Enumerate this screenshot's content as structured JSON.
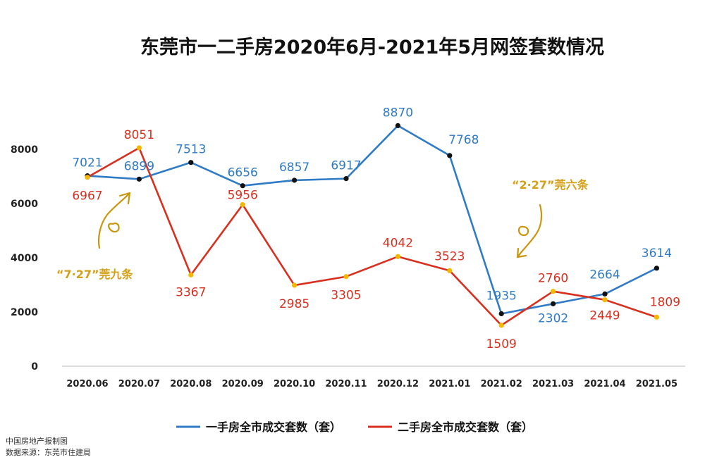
{
  "chart_data": {
    "type": "line",
    "title": "东莞市一二手房2020年6月-2021年5月网签套数情况",
    "categories": [
      "2020.06",
      "2020.07",
      "2020.08",
      "2020.09",
      "2020.10",
      "2020.11",
      "2020.12",
      "2021.01",
      "2021.02",
      "2021.03",
      "2021.04",
      "2021.05"
    ],
    "series": [
      {
        "name": "一手房全市成交套数（套）",
        "color": "#2F7BC5",
        "marker_color": "#111111",
        "values": [
          7021,
          6899,
          7513,
          6656,
          6857,
          6917,
          8870,
          7768,
          1935,
          2302,
          2664,
          3614
        ]
      },
      {
        "name": "二手房全市成交套数（套）",
        "color": "#D8301F",
        "marker_color": "#F5B800",
        "values": [
          6967,
          8051,
          3367,
          5956,
          2985,
          3305,
          4042,
          3523,
          1509,
          2760,
          2449,
          1809
        ]
      }
    ],
    "yticks": [
      0,
      2000,
      4000,
      6000,
      8000
    ],
    "ylim": [
      0,
      9400
    ],
    "grid": false,
    "legend_position": "bottom"
  },
  "annotations": [
    {
      "text": "“7·27”莞九条"
    },
    {
      "text": "“2·27”莞六条"
    }
  ],
  "source": {
    "line1": "中国房地产报制图",
    "line2": "数据来源：东莞市住建局"
  },
  "colors": {
    "blue": "#2F7BC5",
    "red": "#D8301F",
    "gold": "#D4A017"
  }
}
